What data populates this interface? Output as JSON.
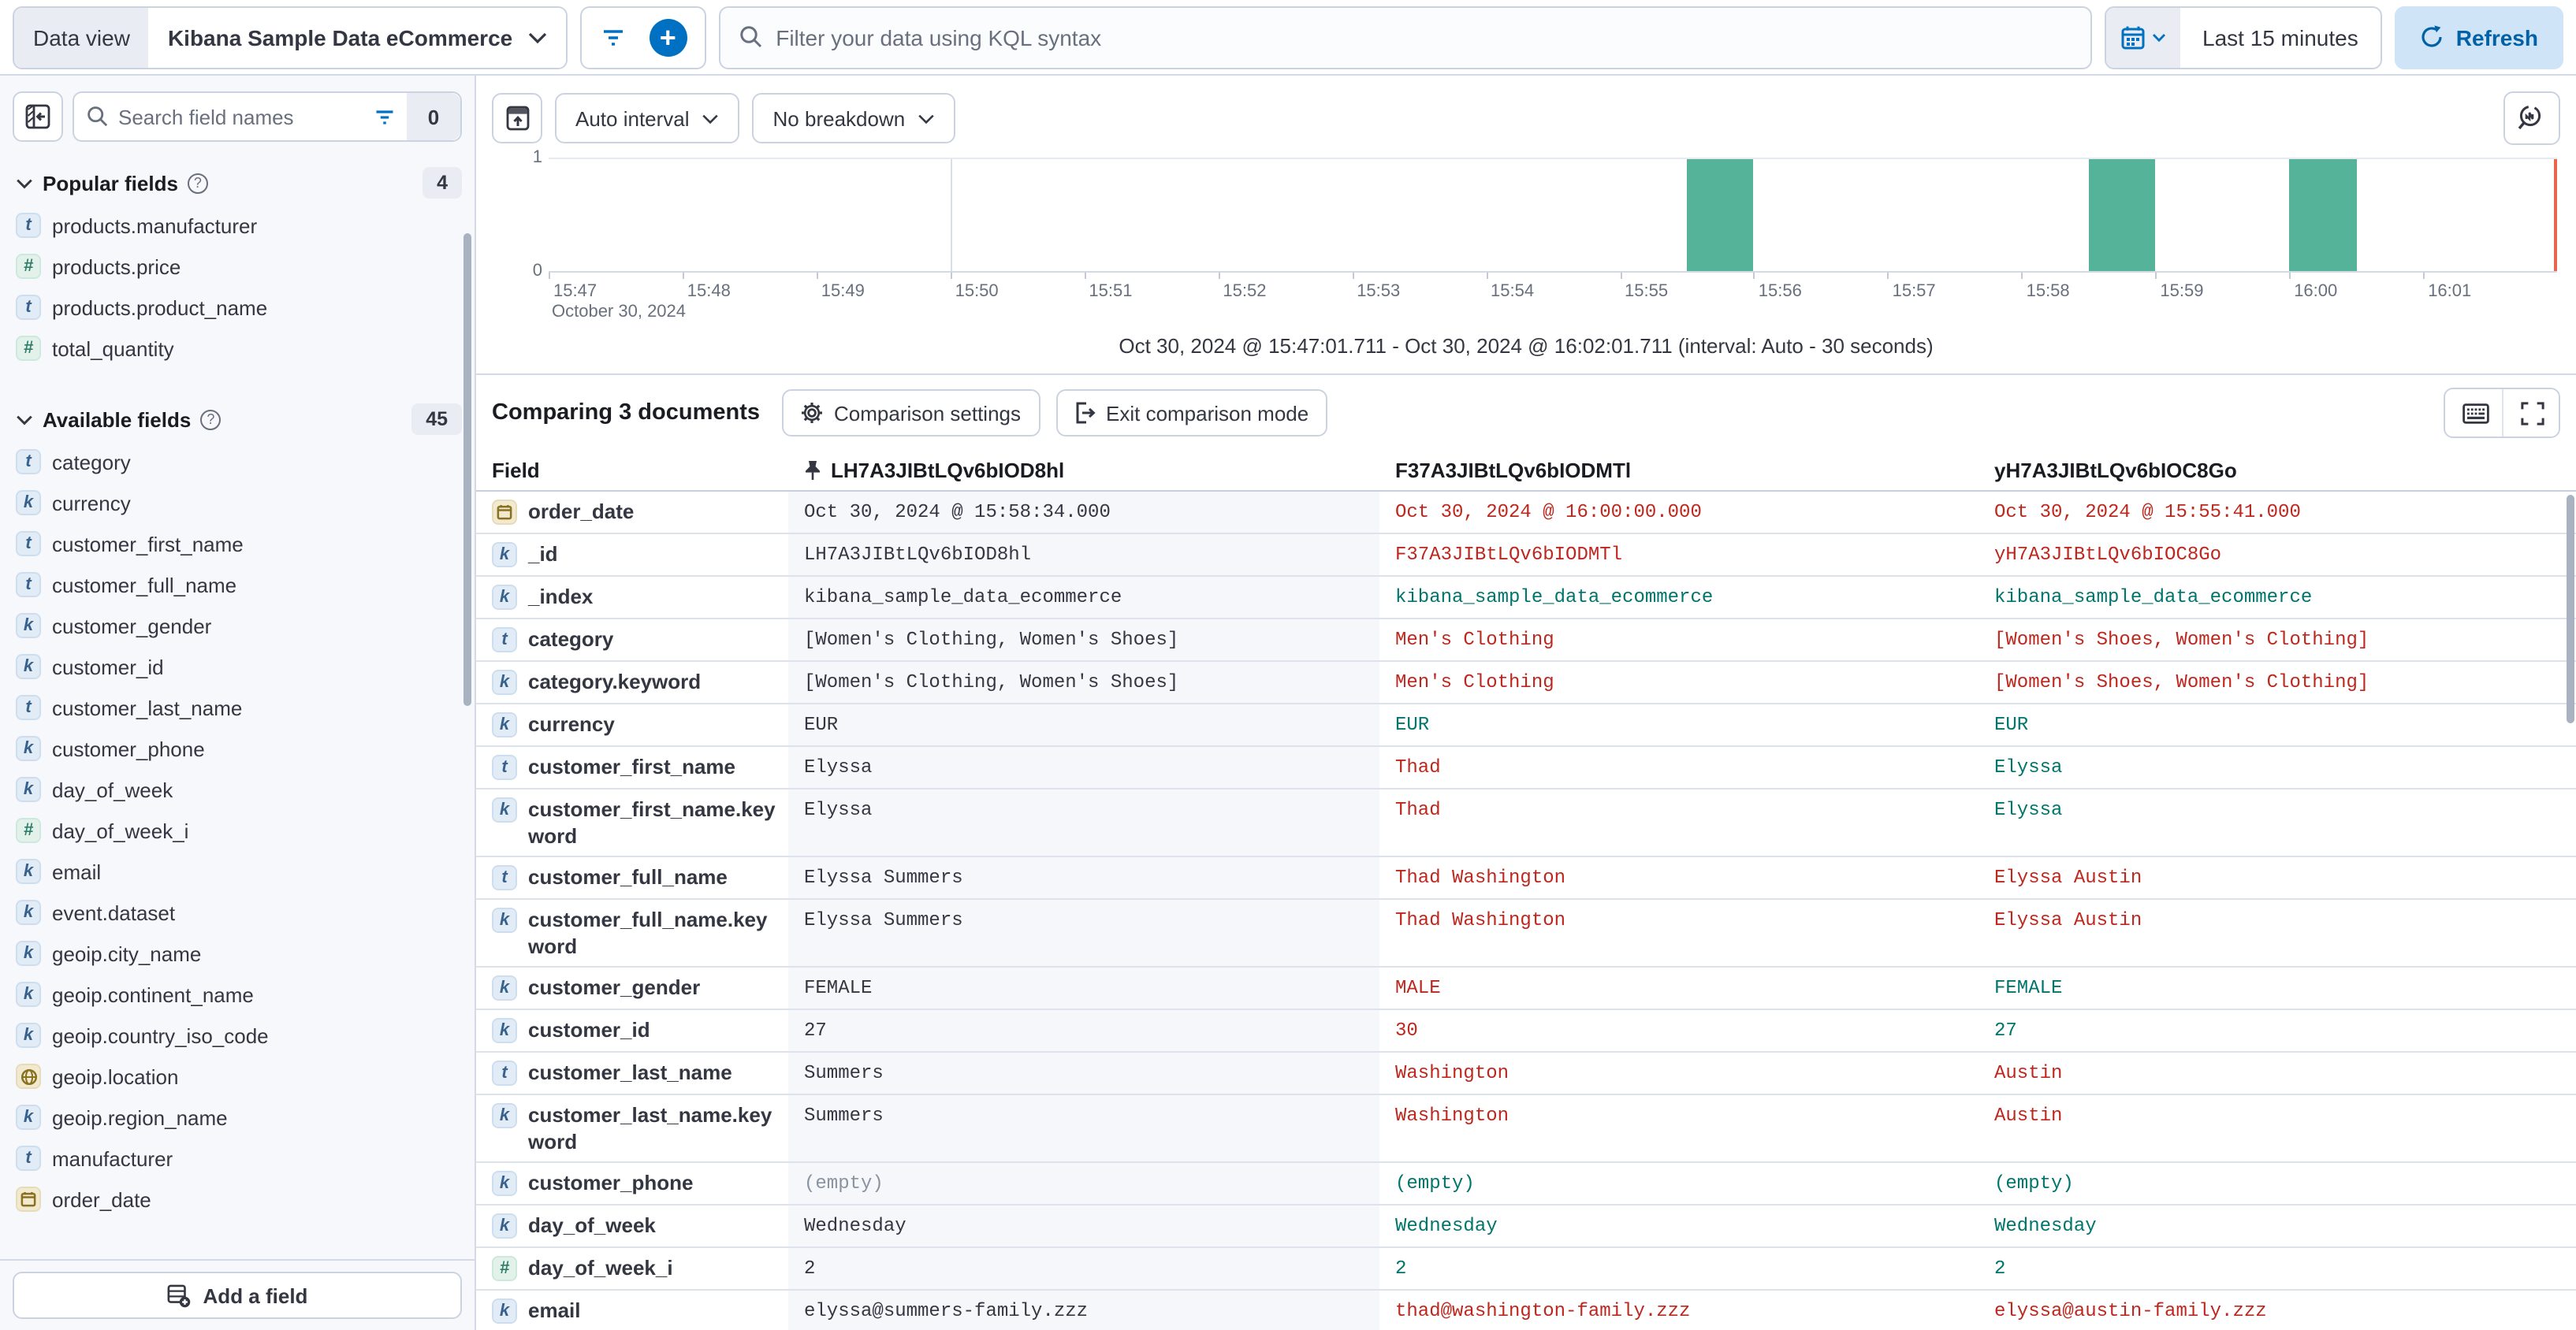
{
  "colors": {
    "accent": "#0071c2",
    "bar": "#54b399",
    "now_line": "#e7664c",
    "diff": "#bd271e",
    "match": "#00756b"
  },
  "top_bar": {
    "data_view_label": "Data view",
    "data_view_value": "Kibana Sample Data eCommerce",
    "kql_placeholder": "Filter your data using KQL syntax",
    "time_range": "Last 15 minutes",
    "refresh_label": "Refresh"
  },
  "sidebar": {
    "search_placeholder": "Search field names",
    "filter_count": "0",
    "popular": {
      "label": "Popular fields",
      "count": "4",
      "items": [
        {
          "type": "t",
          "name": "products.manufacturer"
        },
        {
          "type": "n",
          "name": "products.price"
        },
        {
          "type": "t",
          "name": "products.product_name"
        },
        {
          "type": "n",
          "name": "total_quantity"
        }
      ]
    },
    "available": {
      "label": "Available fields",
      "count": "45",
      "items": [
        {
          "type": "t",
          "name": "category"
        },
        {
          "type": "k",
          "name": "currency"
        },
        {
          "type": "t",
          "name": "customer_first_name"
        },
        {
          "type": "t",
          "name": "customer_full_name"
        },
        {
          "type": "k",
          "name": "customer_gender"
        },
        {
          "type": "k",
          "name": "customer_id"
        },
        {
          "type": "t",
          "name": "customer_last_name"
        },
        {
          "type": "k",
          "name": "customer_phone"
        },
        {
          "type": "k",
          "name": "day_of_week"
        },
        {
          "type": "n",
          "name": "day_of_week_i"
        },
        {
          "type": "k",
          "name": "email"
        },
        {
          "type": "k",
          "name": "event.dataset"
        },
        {
          "type": "k",
          "name": "geoip.city_name"
        },
        {
          "type": "k",
          "name": "geoip.continent_name"
        },
        {
          "type": "k",
          "name": "geoip.country_iso_code"
        },
        {
          "type": "geo",
          "name": "geoip.location"
        },
        {
          "type": "k",
          "name": "geoip.region_name"
        },
        {
          "type": "t",
          "name": "manufacturer"
        },
        {
          "type": "date",
          "name": "order_date"
        }
      ]
    },
    "add_field_label": "Add a field"
  },
  "chart": {
    "controls": {
      "interval": "Auto interval",
      "breakdown": "No breakdown"
    },
    "y_ticks": [
      "1",
      "0"
    ],
    "x_ticks": [
      "15:47",
      "15:48",
      "15:49",
      "15:50",
      "15:51",
      "15:52",
      "15:53",
      "15:54",
      "15:55",
      "15:56",
      "15:57",
      "15:58",
      "15:59",
      "16:00",
      "16:01"
    ],
    "x_date_label": "October 30, 2024",
    "caption": "Oct 30, 2024 @ 15:47:01.711 - Oct 30, 2024 @ 16:02:01.711 (interval: Auto - 30 seconds)",
    "chart_data": {
      "type": "bar",
      "title": "Document count over time",
      "x_start": "15:47",
      "x_end": "16:02",
      "ylim": [
        0,
        1
      ],
      "interval_seconds": 30,
      "bars": [
        {
          "time": "15:55:30",
          "count": 1
        },
        {
          "time": "15:58:30",
          "count": 1
        },
        {
          "time": "16:00:00",
          "count": 1
        }
      ],
      "gridlines": [
        "15:50",
        "16:00"
      ],
      "now_line": "16:02"
    }
  },
  "comparison": {
    "title": "Comparing 3 documents",
    "settings_label": "Comparison settings",
    "exit_label": "Exit comparison mode"
  },
  "table": {
    "field_header": "Field",
    "doc_headers": [
      "LH7A3JIBtLQv6bIOD8hl",
      "F37A3JIBtLQv6bIODMTl",
      "yH7A3JIBtLQv6bIOC8Go"
    ],
    "rows": [
      {
        "type": "date",
        "field": "order_date",
        "values": [
          {
            "text": "Oct 30, 2024 @ 15:58:34.000",
            "status": "base"
          },
          {
            "text": "Oct 30, 2024 @ 16:00:00.000",
            "status": "diff"
          },
          {
            "text": "Oct 30, 2024 @ 15:55:41.000",
            "status": "diff"
          }
        ]
      },
      {
        "type": "k",
        "field": "_id",
        "values": [
          {
            "text": "LH7A3JIBtLQv6bIOD8hl",
            "status": "base"
          },
          {
            "text": "F37A3JIBtLQv6bIODMTl",
            "status": "diff"
          },
          {
            "text": "yH7A3JIBtLQv6bIOC8Go",
            "status": "diff"
          }
        ]
      },
      {
        "type": "k",
        "field": "_index",
        "values": [
          {
            "text": "kibana_sample_data_ecommerce",
            "status": "base"
          },
          {
            "text": "kibana_sample_data_ecommerce",
            "status": "same"
          },
          {
            "text": "kibana_sample_data_ecommerce",
            "status": "same"
          }
        ]
      },
      {
        "type": "t",
        "field": "category",
        "values": [
          {
            "text": "[Women's Clothing, Women's Shoes]",
            "status": "base"
          },
          {
            "text": "Men's Clothing",
            "status": "diff"
          },
          {
            "text": "[Women's Shoes, Women's Clothing]",
            "status": "diff"
          }
        ]
      },
      {
        "type": "k",
        "field": "category.keyword",
        "values": [
          {
            "text": "[Women's Clothing, Women's Shoes]",
            "status": "base"
          },
          {
            "text": "Men's Clothing",
            "status": "diff"
          },
          {
            "text": "[Women's Shoes, Women's Clothing]",
            "status": "diff"
          }
        ]
      },
      {
        "type": "k",
        "field": "currency",
        "values": [
          {
            "text": "EUR",
            "status": "base"
          },
          {
            "text": "EUR",
            "status": "same"
          },
          {
            "text": "EUR",
            "status": "same"
          }
        ]
      },
      {
        "type": "t",
        "field": "customer_first_name",
        "values": [
          {
            "text": "Elyssa",
            "status": "base"
          },
          {
            "text": "Thad",
            "status": "diff"
          },
          {
            "text": "Elyssa",
            "status": "same"
          }
        ]
      },
      {
        "type": "k",
        "field": "customer_first_name.keyword",
        "values": [
          {
            "text": "Elyssa",
            "status": "base"
          },
          {
            "text": "Thad",
            "status": "diff"
          },
          {
            "text": "Elyssa",
            "status": "same"
          }
        ]
      },
      {
        "type": "t",
        "field": "customer_full_name",
        "values": [
          {
            "text": "Elyssa Summers",
            "status": "base"
          },
          {
            "text": "Thad Washington",
            "status": "diff"
          },
          {
            "text": "Elyssa Austin",
            "status": "diff"
          }
        ]
      },
      {
        "type": "k",
        "field": "customer_full_name.keyword",
        "values": [
          {
            "text": "Elyssa Summers",
            "status": "base"
          },
          {
            "text": "Thad Washington",
            "status": "diff"
          },
          {
            "text": "Elyssa Austin",
            "status": "diff"
          }
        ]
      },
      {
        "type": "k",
        "field": "customer_gender",
        "values": [
          {
            "text": "FEMALE",
            "status": "base"
          },
          {
            "text": "MALE",
            "status": "diff"
          },
          {
            "text": "FEMALE",
            "status": "same"
          }
        ]
      },
      {
        "type": "k",
        "field": "customer_id",
        "values": [
          {
            "text": "27",
            "status": "base"
          },
          {
            "text": "30",
            "status": "diff"
          },
          {
            "text": "27",
            "status": "same"
          }
        ]
      },
      {
        "type": "t",
        "field": "customer_last_name",
        "values": [
          {
            "text": "Summers",
            "status": "base"
          },
          {
            "text": "Washington",
            "status": "diff"
          },
          {
            "text": "Austin",
            "status": "diff"
          }
        ]
      },
      {
        "type": "k",
        "field": "customer_last_name.keyword",
        "values": [
          {
            "text": "Summers",
            "status": "base"
          },
          {
            "text": "Washington",
            "status": "diff"
          },
          {
            "text": "Austin",
            "status": "diff"
          }
        ]
      },
      {
        "type": "k",
        "field": "customer_phone",
        "values": [
          {
            "text": "(empty)",
            "status": "empty"
          },
          {
            "text": "(empty)",
            "status": "same"
          },
          {
            "text": "(empty)",
            "status": "same"
          }
        ]
      },
      {
        "type": "k",
        "field": "day_of_week",
        "values": [
          {
            "text": "Wednesday",
            "status": "base"
          },
          {
            "text": "Wednesday",
            "status": "same"
          },
          {
            "text": "Wednesday",
            "status": "same"
          }
        ]
      },
      {
        "type": "n",
        "field": "day_of_week_i",
        "values": [
          {
            "text": "2",
            "status": "base"
          },
          {
            "text": "2",
            "status": "same"
          },
          {
            "text": "2",
            "status": "same"
          }
        ]
      },
      {
        "type": "k",
        "field": "email",
        "values": [
          {
            "text": "elyssa@summers-family.zzz",
            "status": "base"
          },
          {
            "text": "thad@washington-family.zzz",
            "status": "diff"
          },
          {
            "text": "elyssa@austin-family.zzz",
            "status": "diff"
          }
        ]
      }
    ]
  }
}
